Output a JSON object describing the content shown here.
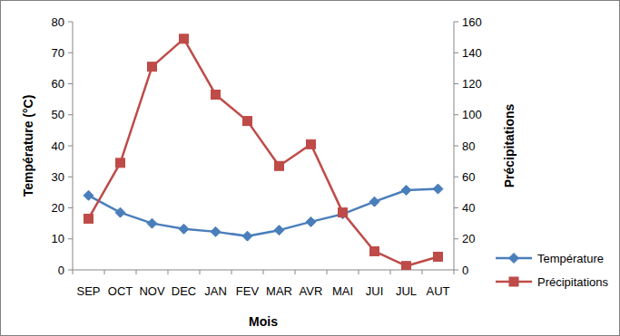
{
  "chart_data": {
    "type": "line",
    "x_label": "Mois",
    "y_label": "Température (°C)",
    "y2_label": "Précipitations",
    "categories": [
      "SEP",
      "OCT",
      "NOV",
      "DEC",
      "JAN",
      "FEV",
      "MAR",
      "AVR",
      "MAI",
      "JUI",
      "JUL",
      "AUT"
    ],
    "series": [
      {
        "name": "Température",
        "color": "#4a7ebb",
        "marker": "diamond",
        "values": [
          24,
          18.5,
          15,
          13.2,
          12.3,
          10.9,
          12.8,
          15.5,
          18,
          22,
          25.7,
          26.1
        ]
      },
      {
        "name": "Précipitations",
        "color": "#be4b48",
        "marker": "square",
        "axis": "y2",
        "values": [
          33,
          69,
          131,
          149,
          113,
          96,
          67,
          81,
          37,
          12,
          2.5,
          8.5
        ]
      }
    ],
    "ylim": [
      0,
      80
    ],
    "yticks": [
      0,
      10,
      20,
      30,
      40,
      50,
      60,
      70,
      80
    ],
    "y2lim": [
      0,
      160
    ],
    "y2ticks": [
      0,
      20,
      40,
      60,
      80,
      100,
      120,
      140,
      160
    ],
    "grid": false,
    "legend": "right"
  }
}
